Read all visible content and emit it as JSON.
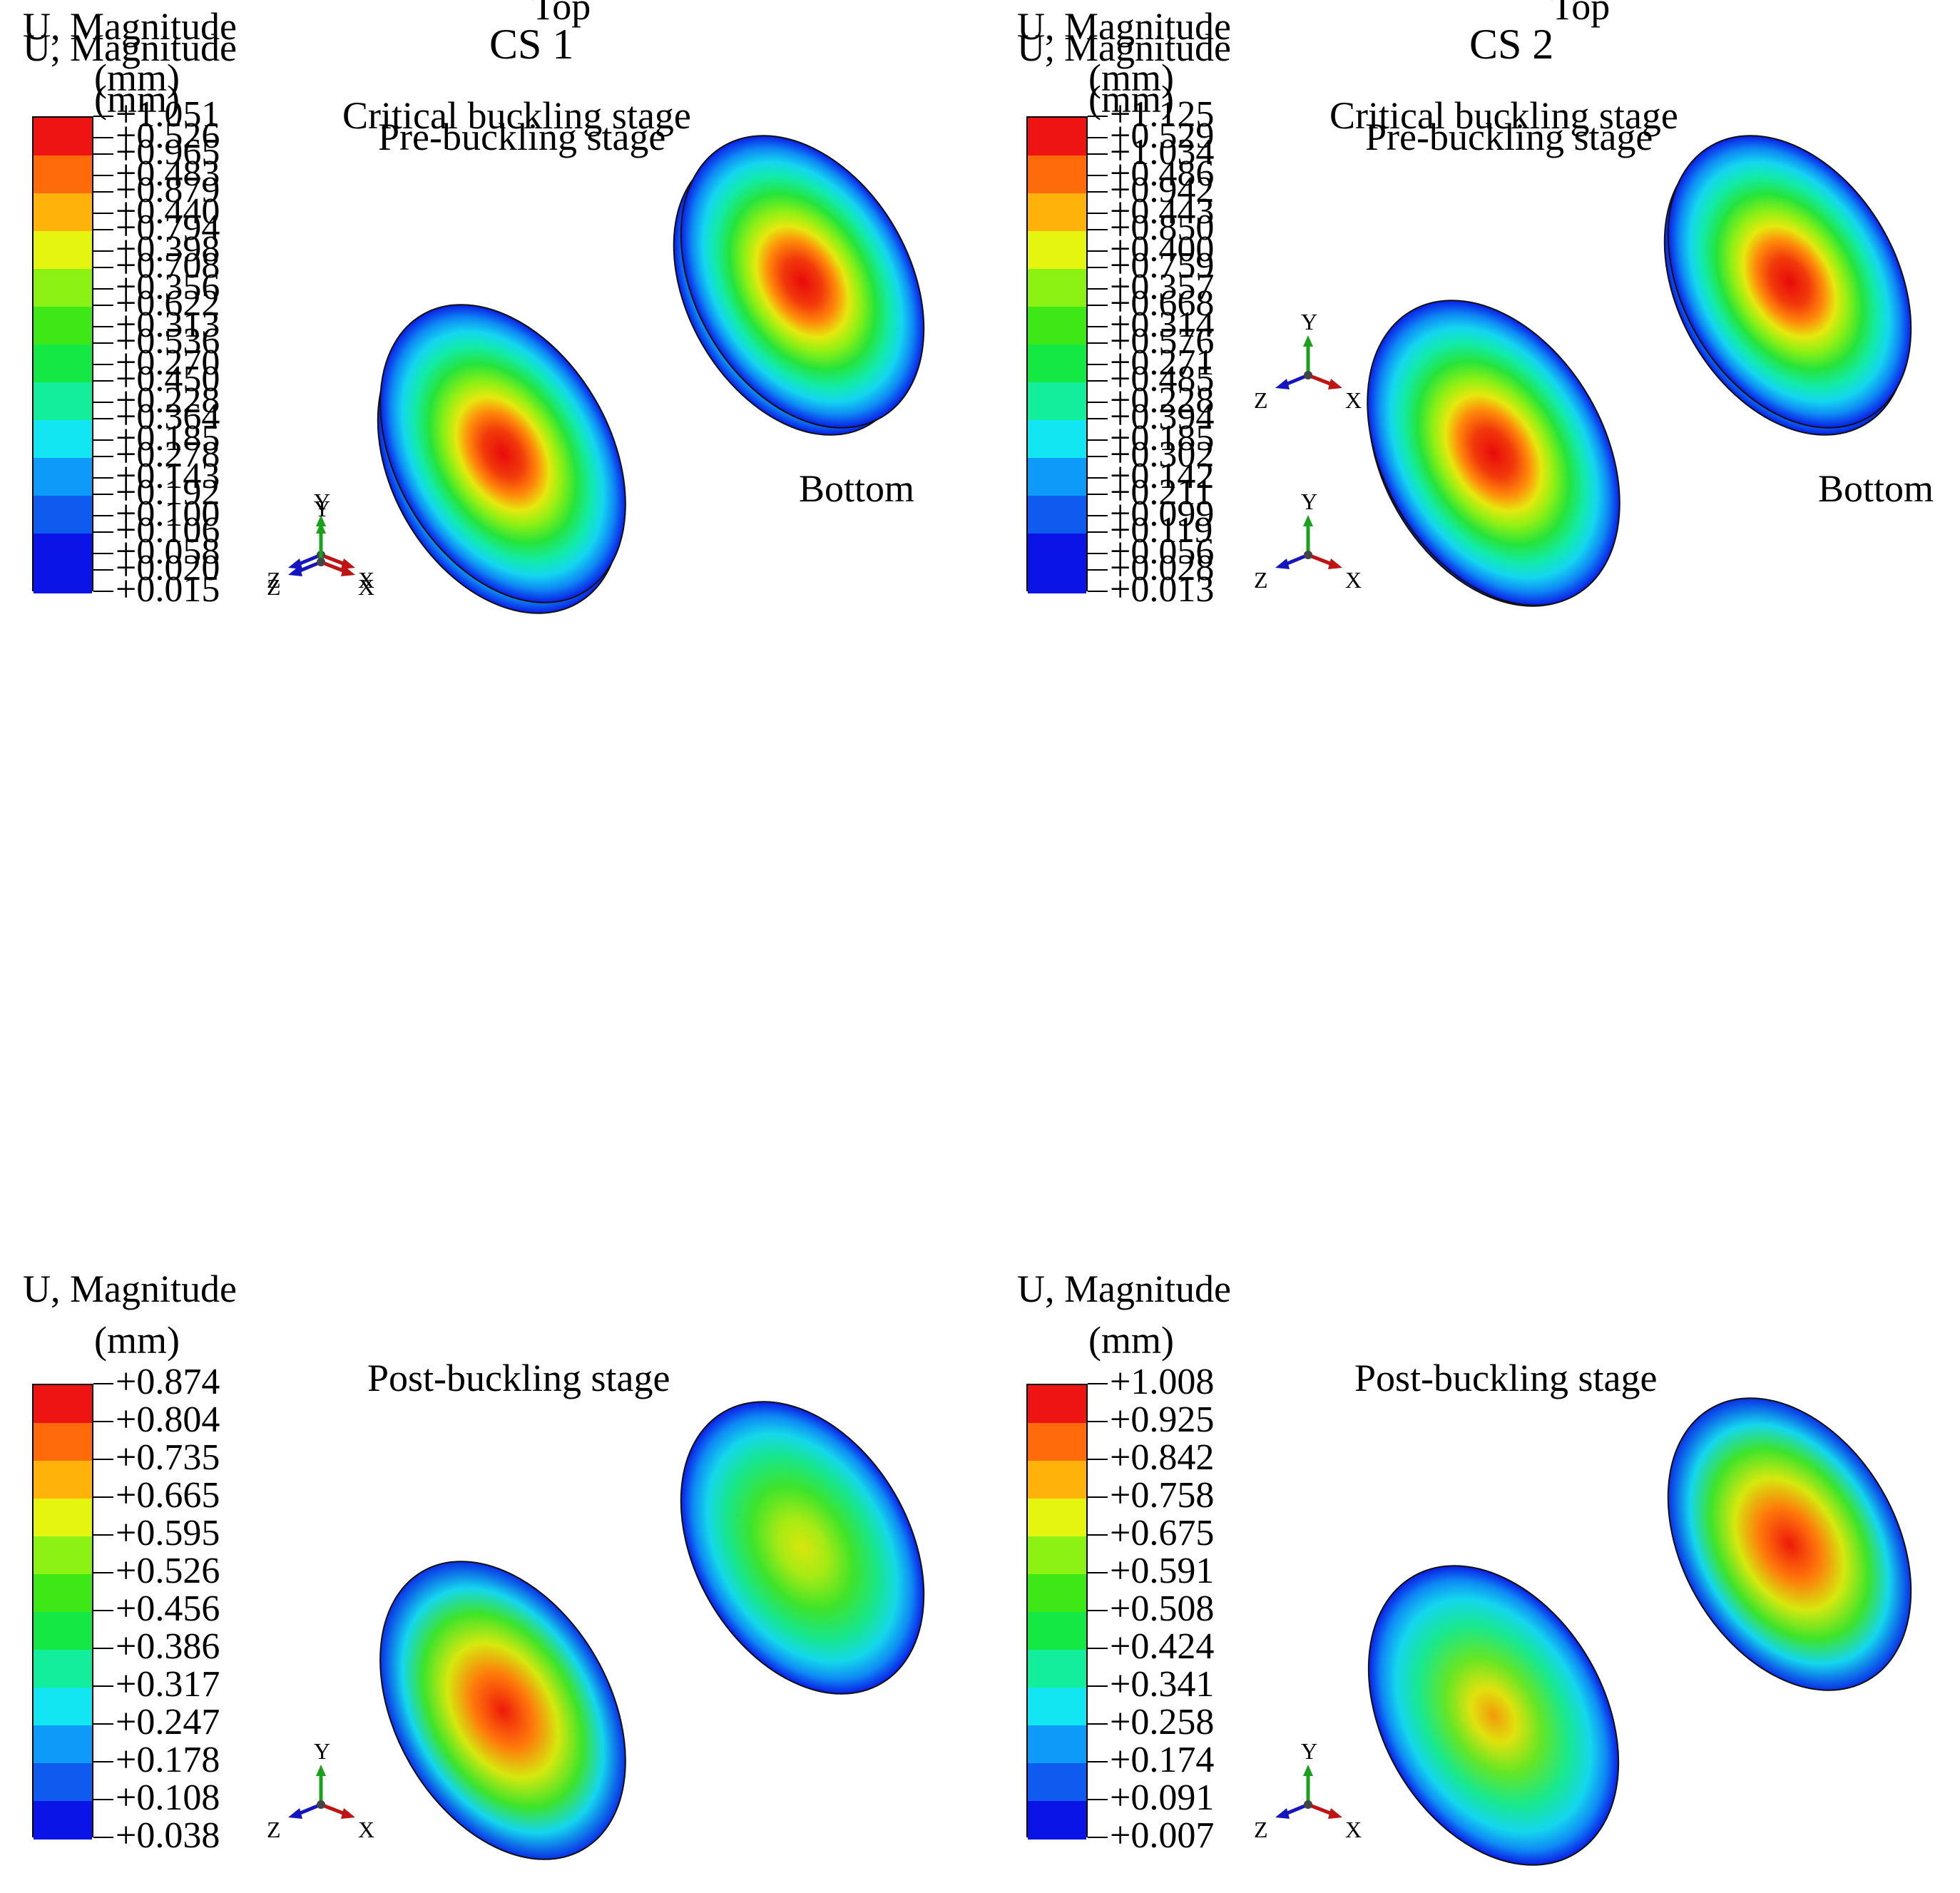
{
  "legend_title": [
    "U, Magnitude",
    "(mm)"
  ],
  "colors": [
    "#0a14e6",
    "#0f5bf0",
    "#0e9af8",
    "#11e6f2",
    "#12ee9c",
    "#14e844",
    "#3ee816",
    "#8cf214",
    "#e6f510",
    "#ffb30a",
    "#ff6a0a",
    "#ef1414"
  ],
  "axis_labels": {
    "y": "Y",
    "x": "X",
    "z": "Z"
  },
  "columns": [
    {
      "title": "CS 1"
    },
    {
      "title": "CS 2"
    }
  ],
  "panels": [
    {
      "id": "cs1-pre",
      "stage": "Pre-buckling stage",
      "side_label": "Bottom",
      "legend_values": [
        "+0.526",
        "+0.483",
        "+0.440",
        "+0.398",
        "+0.356",
        "+0.313",
        "+0.270",
        "+0.228",
        "+0.185",
        "+0.143",
        "+0.100",
        "+0.058",
        "+0.015"
      ]
    },
    {
      "id": "cs2-pre",
      "stage": "Pre-buckling stage",
      "side_label": "Bottom",
      "legend_values": [
        "+0.529",
        "+0.486",
        "+0.443",
        "+0.400",
        "+0.357",
        "+0.314",
        "+0.271",
        "+0.228",
        "+0.185",
        "+0.142",
        "+0.099",
        "+0.056",
        "+0.013"
      ]
    },
    {
      "id": "cs1-critical",
      "stage": "Critical buckling stage",
      "top_label": "Top",
      "legend_values": [
        "+1.051",
        "+0.965",
        "+0.879",
        "+0.794",
        "+0.708",
        "+0.622",
        "+0.536",
        "+0.450",
        "+0.364",
        "+0.278",
        "+0.192",
        "+0.106",
        "+0.020"
      ]
    },
    {
      "id": "cs2-critical",
      "stage": "Critical buckling stage",
      "top_label": "Top",
      "legend_values": [
        "+1.125",
        "+1.034",
        "+0.942",
        "+0.850",
        "+0.759",
        "+0.668",
        "+0.576",
        "+0.485",
        "+0.394",
        "+0.302",
        "+0.211",
        "+0.119",
        "+0.028"
      ]
    },
    {
      "id": "cs1-post",
      "stage": "Post-buckling stage",
      "legend_values": [
        "+0.874",
        "+0.804",
        "+0.735",
        "+0.665",
        "+0.595",
        "+0.526",
        "+0.456",
        "+0.386",
        "+0.317",
        "+0.247",
        "+0.178",
        "+0.108",
        "+0.038"
      ]
    },
    {
      "id": "cs2-post",
      "stage": "Post-buckling stage",
      "legend_values": [
        "+1.008",
        "+0.925",
        "+0.842",
        "+0.758",
        "+0.675",
        "+0.591",
        "+0.508",
        "+0.424",
        "+0.341",
        "+0.258",
        "+0.174",
        "+0.091",
        "+0.007"
      ]
    }
  ]
}
